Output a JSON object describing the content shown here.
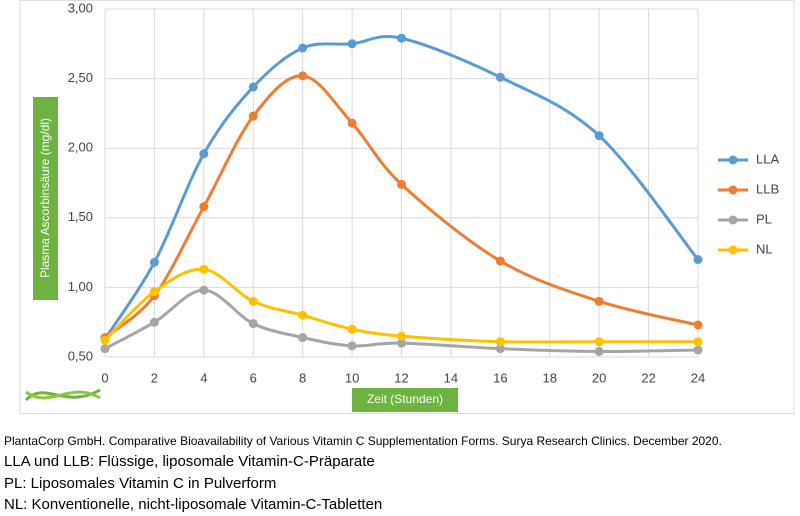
{
  "chart_data": {
    "type": "line",
    "x_label": "Zeit (Stunden)",
    "y_label": "Plasma Ascorbinsäure (mg/dl)",
    "x": [
      0,
      2,
      4,
      6,
      8,
      10,
      12,
      16,
      20,
      24
    ],
    "xlim": [
      0,
      24
    ],
    "xticks": [
      0,
      2,
      4,
      6,
      8,
      10,
      12,
      14,
      16,
      18,
      20,
      22,
      24
    ],
    "ylim": [
      0.5,
      3.0
    ],
    "yticks": [
      {
        "value": 0.5,
        "label": "0,50"
      },
      {
        "value": 1.0,
        "label": "1,00"
      },
      {
        "value": 1.5,
        "label": "1,50"
      },
      {
        "value": 2.0,
        "label": "2,00"
      },
      {
        "value": 2.5,
        "label": "2,50"
      },
      {
        "value": 3.0,
        "label": "3,00"
      }
    ],
    "grid": true,
    "legend": "right",
    "series": [
      {
        "name": "LLA",
        "color": "#5b9bd5",
        "values": [
          0.63,
          1.18,
          1.96,
          2.44,
          2.72,
          2.75,
          2.79,
          2.51,
          2.09,
          1.2
        ]
      },
      {
        "name": "LLB",
        "color": "#ed7d31",
        "values": [
          0.64,
          0.94,
          1.58,
          2.23,
          2.52,
          2.18,
          1.74,
          1.19,
          0.9,
          0.73
        ]
      },
      {
        "name": "PL",
        "color": "#a5a5a5",
        "values": [
          0.56,
          0.75,
          0.98,
          0.74,
          0.64,
          0.58,
          0.6,
          0.56,
          0.54,
          0.55
        ]
      },
      {
        "name": "NL",
        "color": "#ffc000",
        "values": [
          0.62,
          0.97,
          1.13,
          0.9,
          0.8,
          0.7,
          0.65,
          0.61,
          0.61,
          0.61
        ]
      }
    ]
  },
  "caption": [
    "PlantaCorp GmbH. Comparative Bioavailability of Various Vitamin C Supplementation Forms. Surya Research Clinics. December 2020.",
    "LLA und LLB: Flüssige, liposomale Vitamin-C-Präparate",
    "PL: Liposomales Vitamin C in Pulverform",
    "NL: Konventionelle, nicht-liposomale Vitamin-C-Tabletten"
  ]
}
